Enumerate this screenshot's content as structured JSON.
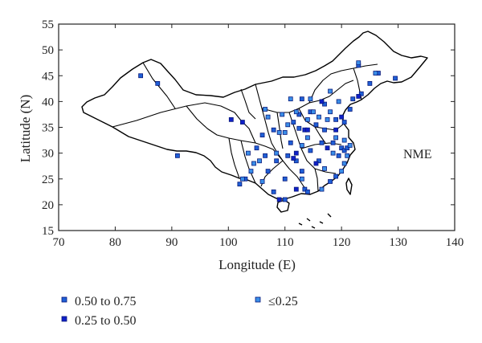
{
  "chart_data": {
    "type": "scatter",
    "title": "",
    "xlabel": "Longitude (E)",
    "ylabel": "Latitude (N)",
    "xlim": [
      70,
      140
    ],
    "ylim": [
      15,
      55
    ],
    "xticks": [
      70,
      80,
      90,
      100,
      110,
      120,
      130,
      140
    ],
    "yticks": [
      15,
      20,
      25,
      30,
      35,
      40,
      45,
      50,
      55
    ],
    "annotation": "NME",
    "legend_position": "below",
    "colors": {
      "0.50 to 0.75": "#1f5fd6",
      "0.25 to 0.50": "#1020c8",
      "≤0.25": "#3a8ee8"
    },
    "legend": [
      "0.50 to 0.75",
      "0.25 to 0.50",
      "≤0.25"
    ],
    "series": [
      {
        "name": "0.50 to 0.75",
        "points": [
          [
            84.5,
            45.0
          ],
          [
            87.5,
            43.5
          ],
          [
            91.0,
            29.5
          ],
          [
            103.0,
            25.0
          ],
          [
            102.0,
            24.0
          ],
          [
            105.0,
            31.0
          ],
          [
            106.5,
            29.5
          ],
          [
            107.0,
            26.5
          ],
          [
            106.0,
            33.5
          ],
          [
            108.0,
            34.5
          ],
          [
            108.5,
            28.5
          ],
          [
            110.0,
            25.0
          ],
          [
            110.5,
            29.5
          ],
          [
            111.0,
            32.0
          ],
          [
            112.0,
            28.5
          ],
          [
            113.0,
            26.5
          ],
          [
            112.5,
            34.8
          ],
          [
            111.5,
            36.0
          ],
          [
            112.5,
            37.5
          ],
          [
            113.0,
            40.5
          ],
          [
            114.5,
            38.0
          ],
          [
            114.5,
            30.5
          ],
          [
            115.5,
            35.5
          ],
          [
            116.5,
            32.0
          ],
          [
            117.0,
            34.5
          ],
          [
            117.0,
            39.5
          ],
          [
            118.5,
            32.0
          ],
          [
            119.0,
            36.5
          ],
          [
            119.5,
            29.5
          ],
          [
            119.0,
            25.5
          ],
          [
            120.0,
            31.0
          ],
          [
            120.5,
            30.5
          ],
          [
            121.0,
            31.0
          ],
          [
            120.5,
            36.0
          ],
          [
            121.5,
            38.5
          ],
          [
            122.0,
            40.5
          ],
          [
            123.5,
            41.5
          ],
          [
            125.0,
            43.5
          ],
          [
            126.5,
            45.5
          ],
          [
            129.5,
            44.5
          ],
          [
            123.0,
            47.0
          ],
          [
            113.5,
            23.0
          ],
          [
            110.0,
            21.0
          ],
          [
            108.0,
            22.5
          ],
          [
            114.0,
            22.5
          ],
          [
            118.0,
            24.5
          ],
          [
            116.0,
            28.5
          ]
        ]
      },
      {
        "name": "0.25 to 0.50",
        "points": [
          [
            100.5,
            36.5
          ],
          [
            102.5,
            36.0
          ],
          [
            113.5,
            34.5
          ],
          [
            114.0,
            34.5
          ],
          [
            119.0,
            34.5
          ],
          [
            120.0,
            37.0
          ],
          [
            123.0,
            41.0
          ],
          [
            111.5,
            29.0
          ],
          [
            115.5,
            28.0
          ],
          [
            112.0,
            23.0
          ],
          [
            109.0,
            21.0
          ],
          [
            116.5,
            40.0
          ],
          [
            117.5,
            31.0
          ],
          [
            112.0,
            30.0
          ]
        ]
      },
      {
        "name": "≤0.25",
        "points": [
          [
            103.5,
            30.0
          ],
          [
            104.5,
            28.0
          ],
          [
            105.5,
            28.5
          ],
          [
            106.5,
            38.5
          ],
          [
            109.0,
            34.0
          ],
          [
            110.0,
            34.0
          ],
          [
            110.5,
            35.5
          ],
          [
            114.0,
            36.5
          ],
          [
            115.0,
            38.0
          ],
          [
            116.0,
            37.0
          ],
          [
            117.5,
            36.5
          ],
          [
            118.0,
            38.0
          ],
          [
            118.0,
            42.0
          ],
          [
            119.5,
            40.0
          ],
          [
            121.0,
            29.5
          ],
          [
            120.5,
            28.0
          ],
          [
            121.5,
            31.5
          ],
          [
            120.0,
            26.5
          ],
          [
            117.0,
            27.0
          ],
          [
            112.0,
            38.0
          ],
          [
            109.5,
            37.5
          ],
          [
            107.0,
            37.0
          ],
          [
            120.5,
            32.5
          ],
          [
            119.0,
            33.0
          ],
          [
            118.5,
            30.0
          ],
          [
            114.0,
            33.0
          ],
          [
            113.0,
            31.5
          ],
          [
            108.5,
            30.0
          ],
          [
            106.0,
            24.5
          ],
          [
            104.0,
            26.5
          ],
          [
            102.5,
            25.0
          ],
          [
            116.5,
            23.0
          ],
          [
            113.0,
            25.0
          ],
          [
            123.0,
            47.5
          ],
          [
            126.0,
            45.5
          ],
          [
            114.5,
            40.5
          ],
          [
            111.0,
            40.5
          ]
        ]
      }
    ]
  }
}
